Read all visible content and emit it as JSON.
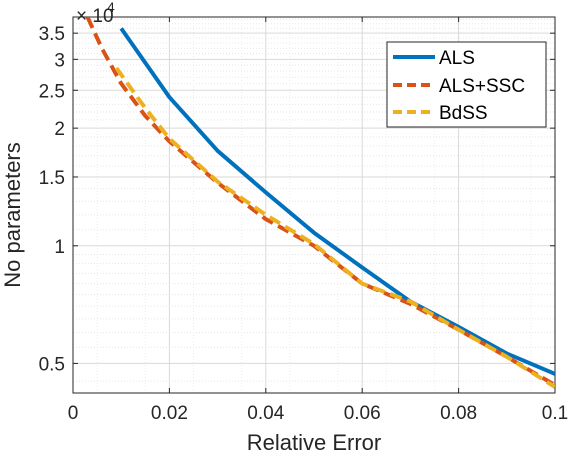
{
  "chart_data": {
    "type": "line",
    "title": "",
    "xlabel": "Relative Error",
    "ylabel": "No parameters",
    "xlim": [
      0,
      0.1
    ],
    "ylim": [
      4200,
      38500
    ],
    "yscale": "log",
    "exponent_label": {
      "base": "× 10",
      "power": "4"
    },
    "x_ticks": [
      0,
      0.02,
      0.04,
      0.06,
      0.08,
      0.1
    ],
    "x_tick_labels": [
      "0",
      "0.02",
      "0.04",
      "0.06",
      "0.08",
      "0.1"
    ],
    "y_ticks": [
      5000,
      10000,
      15000,
      20000,
      25000,
      30000,
      35000
    ],
    "y_tick_labels": [
      "0.5",
      "1",
      "1.5",
      "2",
      "2.5",
      "3",
      "3.5"
    ],
    "grid": true,
    "legend_position": "top-right",
    "series": [
      {
        "name": "ALS",
        "color": "#0072BD",
        "style": "solid",
        "x": [
          0.01,
          0.02,
          0.03,
          0.04,
          0.05,
          0.06,
          0.07,
          0.08,
          0.09,
          0.1
        ],
        "y": [
          36000,
          24000,
          17500,
          13700,
          10800,
          8800,
          7200,
          6200,
          5300,
          4700
        ]
      },
      {
        "name": "ALS+SSC",
        "color": "#D95319",
        "style": "dashed",
        "x": [
          0.003,
          0.006,
          0.01,
          0.015,
          0.02,
          0.03,
          0.04,
          0.05,
          0.06,
          0.07,
          0.08,
          0.09,
          0.1
        ],
        "y": [
          38500,
          32000,
          26000,
          21500,
          18500,
          14500,
          11700,
          10000,
          8000,
          7100,
          6100,
          5200,
          4400
        ]
      },
      {
        "name": "BdSS",
        "color": "#EDB120",
        "style": "dashed",
        "x": [
          0.009,
          0.015,
          0.02,
          0.03,
          0.04,
          0.05,
          0.06,
          0.07,
          0.08,
          0.09,
          0.1
        ],
        "y": [
          28500,
          22500,
          18800,
          14600,
          12000,
          10100,
          8000,
          7200,
          6100,
          5200,
          4350
        ]
      }
    ]
  }
}
